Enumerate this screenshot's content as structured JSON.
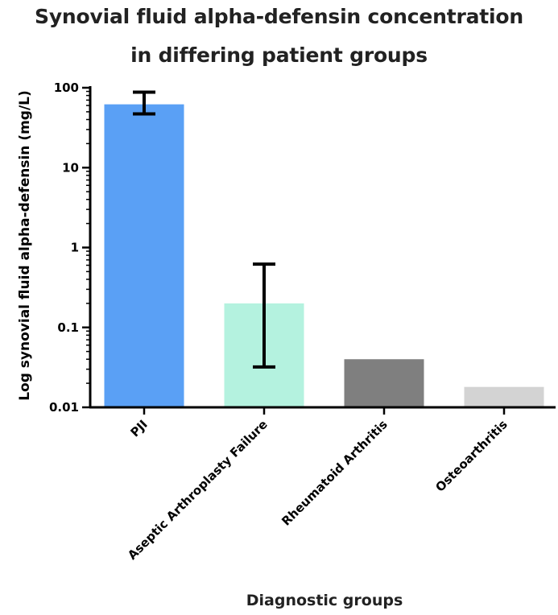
{
  "chart_data": {
    "type": "bar",
    "title_line1": "Synovial fluid alpha-defensin concentration",
    "title_line2": "in differing patient groups",
    "xlabel": "Diagnostic groups",
    "ylabel": "Log synovial fluid alpha-defensin (mg/L)",
    "yscale": "log",
    "ylim": [
      0.01,
      100
    ],
    "yticks": [
      0.01,
      0.1,
      1,
      10,
      100
    ],
    "ytick_labels": [
      "0.01",
      "0.1",
      "1",
      "10",
      "100"
    ],
    "grid": false,
    "categories": [
      "PJI",
      "Aseptic Arthroplasty Failure",
      "Rheumatoid Arthritis",
      "Osteoarthritis"
    ],
    "values": [
      62,
      0.2,
      0.04,
      0.018
    ],
    "error_low": [
      47,
      0.032,
      null,
      null
    ],
    "error_high": [
      88,
      0.62,
      null,
      null
    ],
    "colors": [
      "#5aa0f5",
      "#b4f2df",
      "#7f7f7f",
      "#d3d3d3"
    ]
  }
}
